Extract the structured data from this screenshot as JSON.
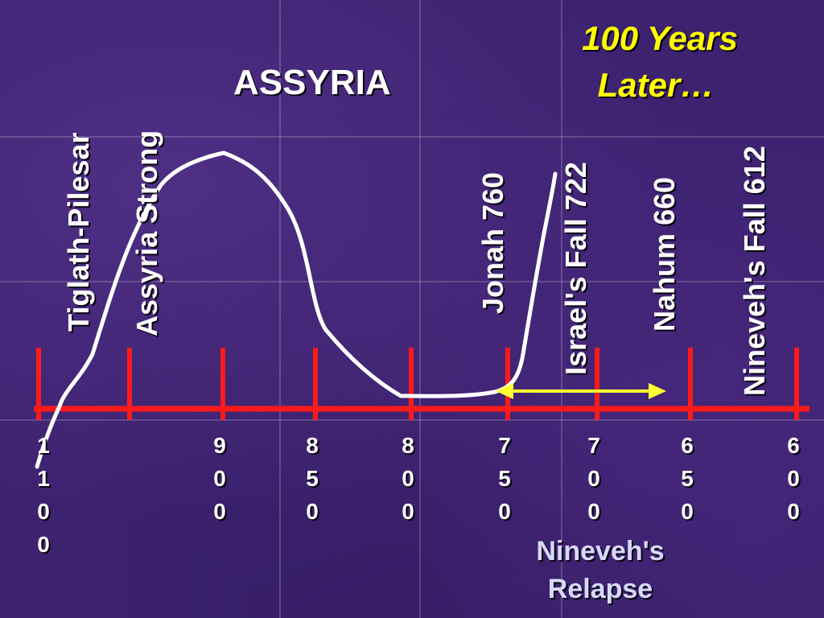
{
  "title": "ASSYRIA",
  "corner_title": [
    "100 Years",
    "Later…"
  ],
  "events": [
    {
      "label": "Tiglath-Pilesar"
    },
    {
      "label": "Assyria Strong"
    },
    {
      "label": "Jonah 760"
    },
    {
      "label": "Israel's Fall 722"
    },
    {
      "label": "Nahum 660"
    },
    {
      "label": "Nineveh's Fall 612"
    }
  ],
  "ticks": [
    {
      "label": "1100",
      "value": 1100
    },
    {
      "label": "",
      "value": 950
    },
    {
      "label": "900",
      "value": 900
    },
    {
      "label": "850",
      "value": 850
    },
    {
      "label": "800",
      "value": 800
    },
    {
      "label": "750",
      "value": 750
    },
    {
      "label": "700",
      "value": 700
    },
    {
      "label": "650",
      "value": 650
    },
    {
      "label": "600",
      "value": 600
    }
  ],
  "relapse_label": [
    "Nineveh's",
    "Relapse"
  ],
  "colors": {
    "axis": "#ff1a1a",
    "curve": "#ffffff",
    "arrow": "#ffff33",
    "corner_title": "#ffff00",
    "text": "#ffffff",
    "relapse": "#d8d8ff",
    "background": "#3d2270"
  }
}
